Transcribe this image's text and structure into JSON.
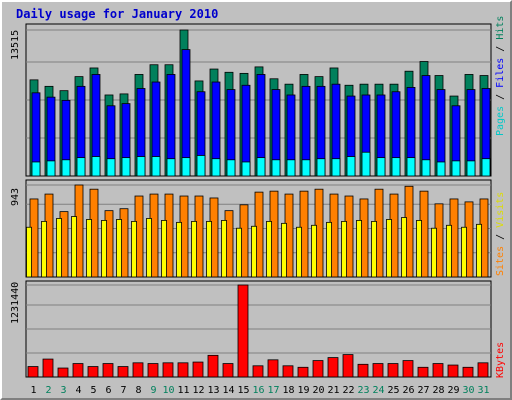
{
  "title": "Daily usage for January 2010",
  "colors": {
    "hits": "#00805c",
    "files": "#0000ff",
    "pages": "#00ffff",
    "visits": "#ffff00",
    "sites": "#ff8000",
    "kbytes": "#ff0000",
    "weekend_day": "#00805c",
    "weekday": "#000000"
  },
  "chart_data": [
    {
      "type": "bar",
      "title": "Daily usage for January 2010",
      "ylabel_max": "13515",
      "ylim": [
        0,
        13515
      ],
      "grid": true,
      "legend": [
        "Pages",
        "Files",
        "Hits"
      ],
      "categories": [
        "1",
        "2",
        "3",
        "4",
        "5",
        "6",
        "7",
        "8",
        "9",
        "10",
        "11",
        "12",
        "13",
        "14",
        "15",
        "16",
        "17",
        "18",
        "19",
        "20",
        "21",
        "22",
        "23",
        "24",
        "25",
        "26",
        "27",
        "28",
        "29",
        "30",
        "31"
      ],
      "series": [
        {
          "name": "Hits",
          "values": [
            8900,
            8300,
            7900,
            9200,
            10000,
            7500,
            7600,
            9400,
            10300,
            10300,
            13515,
            8800,
            9900,
            9600,
            9500,
            10100,
            9000,
            8500,
            9400,
            9200,
            10000,
            8400,
            8500,
            8500,
            8500,
            9700,
            10600,
            9300,
            7400,
            9400,
            9300
          ]
        },
        {
          "name": "Files",
          "values": [
            7700,
            7300,
            7000,
            8300,
            9400,
            6500,
            6700,
            8100,
            8700,
            9400,
            11700,
            7800,
            8700,
            8000,
            8400,
            9400,
            8000,
            7500,
            8300,
            8300,
            8500,
            7400,
            7500,
            7500,
            7800,
            8200,
            9300,
            8000,
            6500,
            8000,
            8100
          ]
        },
        {
          "name": "Pages",
          "values": [
            1300,
            1400,
            1500,
            1700,
            1800,
            1600,
            1700,
            1800,
            1800,
            1600,
            1700,
            1900,
            1600,
            1500,
            1300,
            1700,
            1500,
            1500,
            1500,
            1600,
            1600,
            1800,
            2200,
            1700,
            1700,
            1700,
            1500,
            1300,
            1400,
            1400,
            1600
          ]
        }
      ]
    },
    {
      "type": "bar",
      "ylabel_max": "943",
      "ylim": [
        0,
        943
      ],
      "grid": true,
      "legend": [
        "Sites",
        "Visits"
      ],
      "categories": [
        "1",
        "2",
        "3",
        "4",
        "5",
        "6",
        "7",
        "8",
        "9",
        "10",
        "11",
        "12",
        "13",
        "14",
        "15",
        "16",
        "17",
        "18",
        "19",
        "20",
        "21",
        "22",
        "23",
        "24",
        "25",
        "26",
        "27",
        "28",
        "29",
        "30",
        "31"
      ],
      "series": [
        {
          "name": "Sites",
          "values": [
            800,
            850,
            670,
            943,
            900,
            680,
            700,
            830,
            850,
            850,
            830,
            830,
            810,
            680,
            740,
            870,
            880,
            850,
            880,
            900,
            850,
            830,
            800,
            900,
            850,
            930,
            880,
            750,
            800,
            770,
            800
          ]
        },
        {
          "name": "Visits",
          "values": [
            510,
            570,
            600,
            620,
            590,
            580,
            590,
            570,
            600,
            580,
            560,
            570,
            570,
            580,
            500,
            520,
            570,
            550,
            510,
            530,
            560,
            570,
            580,
            570,
            590,
            610,
            580,
            500,
            530,
            510,
            540
          ]
        }
      ]
    },
    {
      "type": "bar",
      "ylabel_max": "1231440",
      "ylim": [
        0,
        1231440
      ],
      "grid": true,
      "legend": [
        "KBytes"
      ],
      "categories": [
        "1",
        "2",
        "3",
        "4",
        "5",
        "6",
        "7",
        "8",
        "9",
        "10",
        "11",
        "12",
        "13",
        "14",
        "15",
        "16",
        "17",
        "18",
        "19",
        "20",
        "21",
        "22",
        "23",
        "24",
        "25",
        "26",
        "27",
        "28",
        "29",
        "30",
        "31"
      ],
      "series": [
        {
          "name": "KBytes",
          "values": [
            140000,
            240000,
            120000,
            180000,
            140000,
            180000,
            140000,
            190000,
            180000,
            190000,
            190000,
            200000,
            290000,
            180000,
            1231440,
            150000,
            230000,
            150000,
            130000,
            220000,
            260000,
            300000,
            170000,
            180000,
            180000,
            220000,
            130000,
            180000,
            160000,
            130000,
            190000
          ]
        }
      ]
    }
  ]
}
